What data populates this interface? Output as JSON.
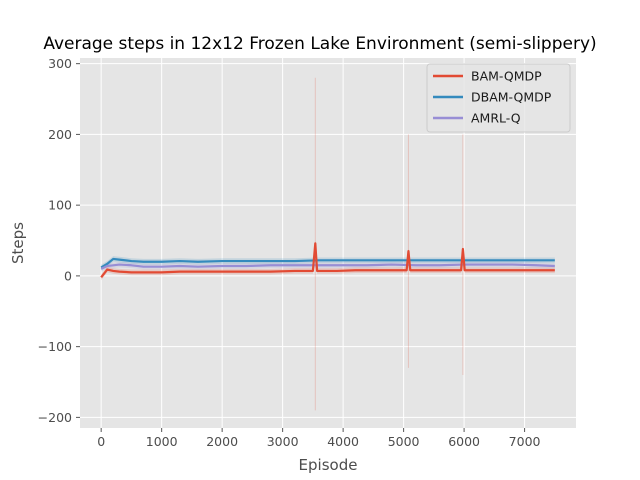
{
  "chart_data": {
    "type": "line",
    "title": "Average steps in 12x12 Frozen Lake Environment (semi-slippery)",
    "xlabel": "Episode",
    "ylabel": "Steps",
    "xlim": [
      -350,
      7850
    ],
    "ylim": [
      -215,
      308
    ],
    "xticks": [
      0,
      1000,
      2000,
      3000,
      4000,
      5000,
      6000,
      7000
    ],
    "xtick_labels": [
      "0",
      "1000",
      "2000",
      "3000",
      "4000",
      "5000",
      "6000",
      "7000"
    ],
    "yticks": [
      -200,
      -100,
      0,
      100,
      200,
      300
    ],
    "ytick_labels": [
      "−200",
      "−100",
      "0",
      "100",
      "200",
      "300"
    ],
    "grid": true,
    "legend": "top-right",
    "series": [
      {
        "name": "BAM-QMDP",
        "color": "#E24A33",
        "x": [
          0,
          100,
          200,
          300,
          500,
          700,
          1000,
          1300,
          1600,
          2000,
          2400,
          2800,
          3200,
          3500,
          3540,
          3570,
          3600,
          3900,
          4200,
          4500,
          4800,
          5050,
          5080,
          5110,
          5300,
          5600,
          5950,
          5980,
          6010,
          6300,
          6600,
          6900,
          7200,
          7500
        ],
        "y": [
          -2,
          9,
          7,
          6,
          5,
          5,
          5,
          6,
          6,
          6,
          6,
          6,
          7,
          7,
          46,
          7,
          7,
          7,
          8,
          8,
          8,
          8,
          35,
          8,
          8,
          8,
          8,
          38,
          8,
          8,
          8,
          8,
          8,
          8
        ]
      },
      {
        "name": "DBAM-QMDP",
        "color": "#348ABD",
        "x": [
          0,
          100,
          200,
          300,
          500,
          700,
          1000,
          1300,
          1600,
          2000,
          2400,
          2800,
          3200,
          3600,
          4000,
          4400,
          4800,
          5200,
          5600,
          6000,
          6400,
          6800,
          7200,
          7500
        ],
        "y": [
          12,
          17,
          24,
          23,
          21,
          20,
          20,
          21,
          20,
          21,
          21,
          21,
          21,
          22,
          22,
          22,
          22,
          22,
          22,
          22,
          22,
          22,
          22,
          22
        ]
      },
      {
        "name": "AMRL-Q",
        "color": "#988ED5",
        "x": [
          0,
          100,
          200,
          300,
          500,
          700,
          1000,
          1300,
          1600,
          2000,
          2400,
          2800,
          3200,
          3600,
          4000,
          4400,
          4800,
          5200,
          5600,
          6000,
          6400,
          6800,
          7200,
          7500
        ],
        "y": [
          10,
          14,
          15,
          16,
          15,
          13,
          13,
          14,
          13,
          14,
          14,
          15,
          15,
          15,
          15,
          15,
          16,
          15,
          15,
          16,
          16,
          16,
          15,
          14
        ]
      }
    ]
  }
}
